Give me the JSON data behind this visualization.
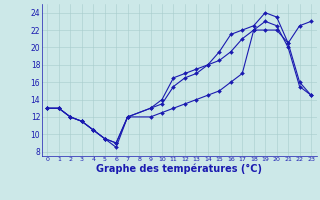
{
  "title": "Graphe des températures (°C)",
  "bg_color": "#cce8e8",
  "line_color": "#1a1ab0",
  "xlim": [
    -0.5,
    23.5
  ],
  "ylim": [
    7.5,
    25
  ],
  "xticks": [
    0,
    1,
    2,
    3,
    4,
    5,
    6,
    7,
    8,
    9,
    10,
    11,
    12,
    13,
    14,
    15,
    16,
    17,
    18,
    19,
    20,
    21,
    22,
    23
  ],
  "yticks": [
    8,
    10,
    12,
    14,
    16,
    18,
    20,
    22,
    24
  ],
  "line1_x": [
    0,
    1,
    2,
    3,
    4,
    5,
    6,
    7,
    9,
    10,
    11,
    12,
    13,
    14,
    15,
    16,
    17,
    18,
    19,
    20,
    21,
    22,
    23
  ],
  "line1_y": [
    13,
    13,
    12,
    11.5,
    10.5,
    9.5,
    8.5,
    12,
    12,
    12.5,
    13,
    13.5,
    14,
    14.5,
    15,
    16,
    17,
    22,
    23,
    22.5,
    20,
    15.5,
    14.5
  ],
  "line2_x": [
    0,
    1,
    2,
    3,
    4,
    5,
    6,
    7,
    9,
    10,
    11,
    12,
    13,
    14,
    15,
    16,
    17,
    18,
    19,
    20,
    21,
    22,
    23
  ],
  "line2_y": [
    13,
    13,
    12,
    11.5,
    10.5,
    9.5,
    9,
    12,
    13,
    14,
    16.5,
    17,
    17.5,
    18,
    18.5,
    19.5,
    21,
    22,
    22,
    22,
    20.5,
    22.5,
    23
  ],
  "line3_x": [
    0,
    1,
    2,
    3,
    4,
    5,
    6,
    7,
    9,
    10,
    11,
    12,
    13,
    14,
    15,
    16,
    17,
    18,
    19,
    20,
    21,
    22,
    23
  ],
  "line3_y": [
    13,
    13,
    12,
    11.5,
    10.5,
    9.5,
    9,
    12,
    13,
    13.5,
    15.5,
    16.5,
    17,
    18,
    19.5,
    21.5,
    22,
    22.5,
    24,
    23.5,
    20.5,
    16,
    14.5
  ]
}
